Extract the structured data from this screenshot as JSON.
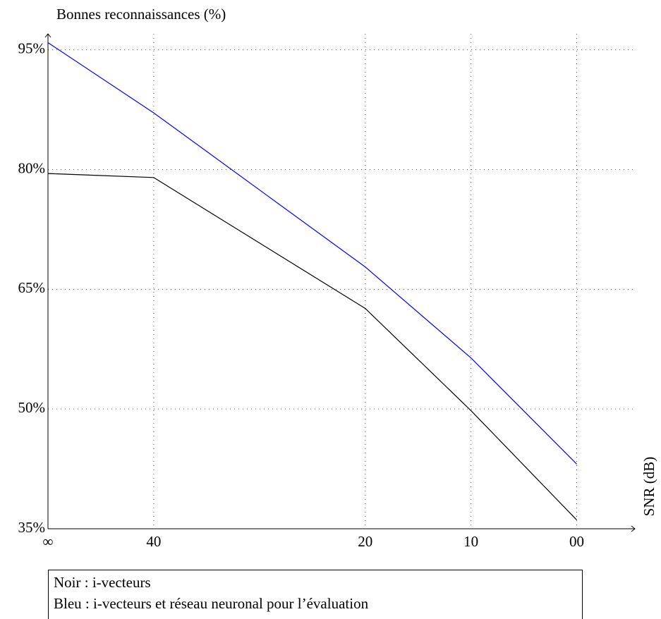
{
  "chart_data": {
    "type": "line",
    "y_label": "Bonnes reconnaissances (%)",
    "x_label": "SNR (dB)",
    "x": [
      0,
      1,
      3,
      4,
      5
    ],
    "xlim": [
      0,
      5.55
    ],
    "xticks": [
      {
        "value": 0,
        "label": "∞"
      },
      {
        "value": 1,
        "label": "40"
      },
      {
        "value": 3,
        "label": "20"
      },
      {
        "value": 4,
        "label": "10"
      },
      {
        "value": 5,
        "label": "00"
      }
    ],
    "ylim": [
      35,
      97
    ],
    "yticks": [
      {
        "value": 35,
        "label": "35%"
      },
      {
        "value": 50,
        "label": "50%"
      },
      {
        "value": 65,
        "label": "65%"
      },
      {
        "value": 80,
        "label": "80%"
      },
      {
        "value": 95,
        "label": "95%"
      }
    ],
    "grid": true,
    "series": [
      {
        "name": "Noir : i-vecteurs",
        "color": "#000000",
        "values": [
          79.5,
          79.0,
          62.6,
          49.8,
          36.1
        ]
      },
      {
        "name": "Bleu : i-vecteurs et réseau neuronal pour l’évaluation",
        "color": "#0000ff",
        "values": [
          95.9,
          87.1,
          67.8,
          56.4,
          43.1
        ]
      }
    ]
  }
}
